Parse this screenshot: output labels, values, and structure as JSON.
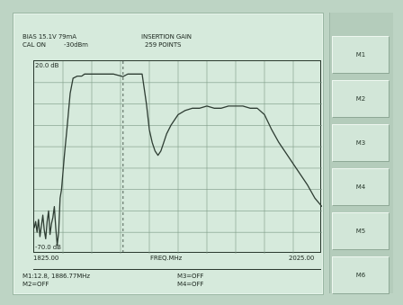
{
  "header": {
    "bias": "BIAS 15.1V 79mA",
    "cal": "CAL ON",
    "power": "-30dBm",
    "title": "INSERTION GAIN",
    "points": "259 POINTS"
  },
  "plot": {
    "y_top": "20.0 dB",
    "y_bottom": "-70.0 dB",
    "x_left": "1825.00",
    "x_center": "FREQ.MHz",
    "x_right": "2025.00"
  },
  "markers": {
    "m1": "M1:12.8, 1886.77MHz",
    "m2": "M2=OFF",
    "m3": "M3=OFF",
    "m4": "M4=OFF"
  },
  "buttons": [
    {
      "label": "M1"
    },
    {
      "label": "M2"
    },
    {
      "label": "M3"
    },
    {
      "label": "M4"
    },
    {
      "label": "M5"
    },
    {
      "label": "M6"
    }
  ],
  "colors": {
    "trace": "#2e3d33",
    "grid": "#7f9c88",
    "screen": "#d6eadc"
  },
  "chart_data": {
    "type": "line",
    "x": [
      1825,
      1826,
      1827,
      1828,
      1829,
      1830,
      1831,
      1832,
      1833,
      1834,
      1835,
      1836,
      1837,
      1838,
      1839,
      1840,
      1841,
      1842,
      1843,
      1844,
      1845,
      1846,
      1848,
      1850,
      1852,
      1855,
      1858,
      1860,
      1865,
      1870,
      1875,
      1880,
      1886.77,
      1890,
      1895,
      1900,
      1903,
      1905,
      1907,
      1909,
      1911,
      1913,
      1915,
      1917,
      1920,
      1925,
      1930,
      1935,
      1940,
      1945,
      1950,
      1955,
      1960,
      1965,
      1970,
      1975,
      1980,
      1985,
      1990,
      1995,
      2000,
      2005,
      2010,
      2015,
      2020,
      2025
    ],
    "y": [
      -58,
      -55,
      -60,
      -54,
      -62,
      -57,
      -52,
      -59,
      -63,
      -55,
      -50,
      -61,
      -56,
      -53,
      -48,
      -58,
      -66,
      -60,
      -44,
      -40,
      -32,
      -24,
      -10,
      5,
      12,
      13,
      13,
      14,
      14,
      14,
      14,
      14,
      12.8,
      14,
      14,
      14,
      0,
      -12,
      -18,
      -22,
      -24,
      -22,
      -18,
      -14,
      -10,
      -5,
      -3,
      -2,
      -2,
      -1,
      -2,
      -2,
      -1,
      -1,
      -1,
      -2,
      -2,
      -5,
      -12,
      -18,
      -23,
      -28,
      -33,
      -38,
      -44,
      -48
    ],
    "xlim": [
      1825,
      2025
    ],
    "ylim": [
      -70,
      20
    ],
    "grid": true,
    "marker_x": 1886.77,
    "title": "INSERTION GAIN",
    "xlabel": "FREQ.MHz",
    "ylabel": ""
  }
}
